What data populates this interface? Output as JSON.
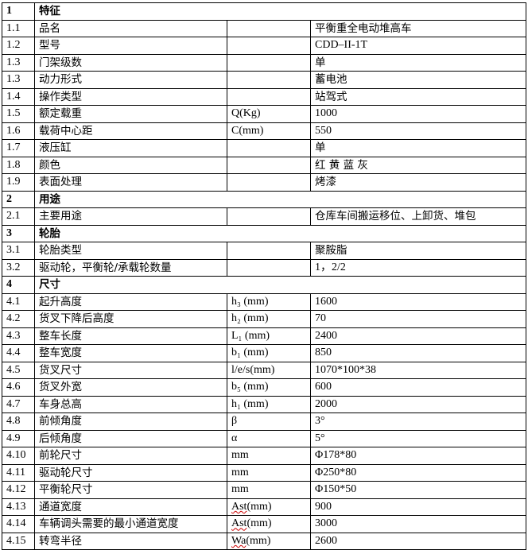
{
  "rows": [
    {
      "type": "section",
      "no": "1",
      "title": "特征"
    },
    {
      "no": "1.1",
      "name": "品名",
      "unit": "",
      "value": "平衡重全电动堆高车"
    },
    {
      "no": "1.2",
      "name": "型号",
      "unit": "",
      "value": "CDD–II-1T"
    },
    {
      "no": "1.3",
      "name": "门架级数",
      "unit": "",
      "value": "单"
    },
    {
      "no": "1.3",
      "name": "动力形式",
      "unit": "",
      "value": "蓄电池"
    },
    {
      "no": "1.4",
      "name": "操作类型",
      "unit": "",
      "value": "站驾式"
    },
    {
      "no": "1.5",
      "name": "额定载重",
      "unit": "Q(Kg)",
      "value": "1000"
    },
    {
      "no": "1.6",
      "name": "载荷中心距",
      "unit": "C(mm)",
      "value": "550"
    },
    {
      "no": "1.7",
      "name": "液压缸",
      "unit": "",
      "value": "单"
    },
    {
      "no": "1.8",
      "name": "颜色",
      "unit": "",
      "value": "红 黄 蓝 灰"
    },
    {
      "no": "1.9",
      "name": "表面处理",
      "unit": "",
      "value": "烤漆"
    },
    {
      "type": "section",
      "no": "2",
      "title": "用途"
    },
    {
      "no": "2.1",
      "name": "主要用途",
      "unit": "",
      "value": "仓库车间搬运移位、上卸货、堆包"
    },
    {
      "type": "section",
      "no": "3",
      "title": "轮胎"
    },
    {
      "no": "3.1",
      "name": "轮胎类型",
      "unit": "",
      "value": "聚胺脂"
    },
    {
      "no": "3.2",
      "name": "驱动轮，平衡轮/承载轮数量",
      "unit": "",
      "value": "1，2/2"
    },
    {
      "type": "section",
      "no": "4",
      "title": "尺寸"
    },
    {
      "no": "4.1",
      "name": "起升高度",
      "unit": "h₃ (mm)",
      "value": "1600"
    },
    {
      "no": "4.2",
      "name": "货叉下降后高度",
      "unit": "h₂ (mm)",
      "value": "70"
    },
    {
      "no": "4.3",
      "name": "整车长度",
      "unit": "L₁ (mm)",
      "value": "2400"
    },
    {
      "no": "4.4",
      "name": "整车宽度",
      "unit": "b₁ (mm)",
      "value": "850"
    },
    {
      "no": "4.5",
      "name": "货叉尺寸",
      "unit": "l/e/s(mm)",
      "value": "1070*100*38"
    },
    {
      "no": "4.6",
      "name": "货叉外宽",
      "unit": "b₅ (mm)",
      "value": "600"
    },
    {
      "no": "4.7",
      "name": "车身总高",
      "unit": "h₁ (mm)",
      "value": "2000"
    },
    {
      "no": "4.8",
      "name": "前倾角度",
      "unit": "β",
      "value": "3°"
    },
    {
      "no": "4.9",
      "name": "后倾角度",
      "unit": "α",
      "value": "5°"
    },
    {
      "no": "4.10",
      "name": "前轮尺寸",
      "unit": "mm",
      "value": "Φ178*80"
    },
    {
      "no": "4.11",
      "name": "驱动轮尺寸",
      "unit": "mm",
      "value": "Φ250*80"
    },
    {
      "no": "4.12",
      "name": "平衡轮尺寸",
      "unit": "mm",
      "value": "Φ150*50"
    },
    {
      "no": "4.13",
      "name": "通道宽度",
      "unit": "Ast(mm)",
      "value": "900"
    },
    {
      "no": "4.14",
      "name": "车辆调头需要的最小通道宽度",
      "unit": "Ast(mm)",
      "value": "3000"
    },
    {
      "no": "4.15",
      "name": "转弯半径",
      "unit": "Wa(mm)",
      "value": "2600"
    }
  ]
}
